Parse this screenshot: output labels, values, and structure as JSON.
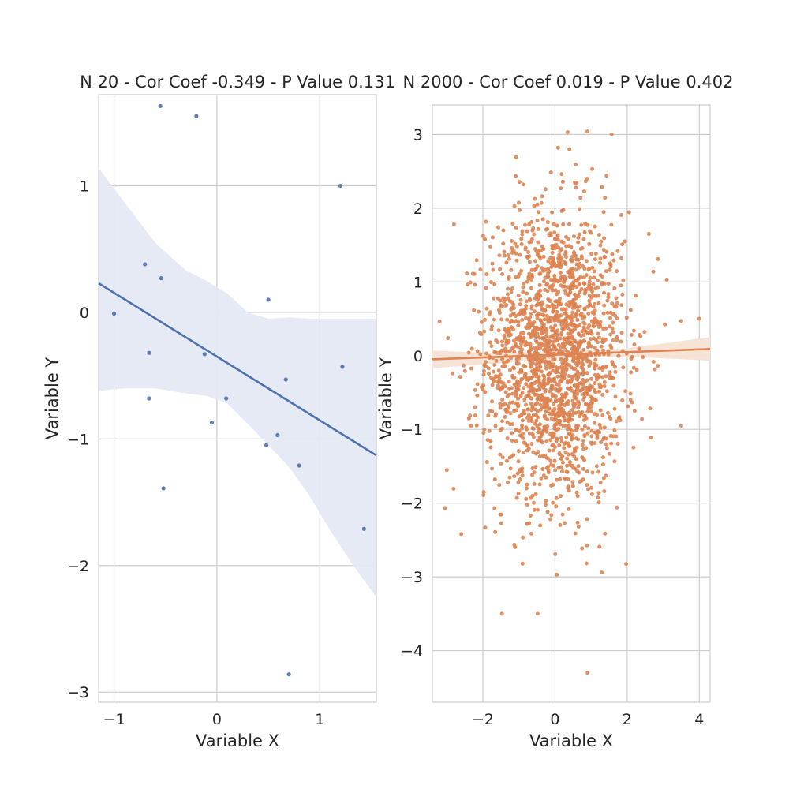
{
  "chart_data": [
    {
      "type": "scatter",
      "title": "N 20 - Cor Coef -0.349 - P Value 0.131",
      "xlabel": "Variable X",
      "ylabel": "Variable Y",
      "xlim": [
        -1.15,
        1.55
      ],
      "ylim": [
        -3.08,
        1.72
      ],
      "xticks": [
        -1,
        0,
        1
      ],
      "xtick_labels": [
        "−1",
        "0",
        "1"
      ],
      "yticks": [
        -3,
        -2,
        -1,
        0,
        1
      ],
      "ytick_labels": [
        "−3",
        "−2",
        "−1",
        "0",
        "1"
      ],
      "grid": true,
      "color": "#4c72b0",
      "band_color": "#e4e9f3",
      "regression": {
        "x": [
          -1.15,
          1.55
        ],
        "y": [
          0.23,
          -1.13
        ]
      },
      "ci_band": {
        "x": [
          -1.15,
          -0.9,
          -0.6,
          -0.3,
          -0.1,
          0.1,
          0.3,
          0.5,
          0.7,
          0.9,
          1.1,
          1.3,
          1.55
        ],
        "upper": [
          1.14,
          0.87,
          0.55,
          0.33,
          0.25,
          0.15,
          0.0,
          -0.05,
          -0.04,
          -0.05,
          -0.05,
          -0.05,
          -0.05
        ],
        "lower": [
          -0.62,
          -0.6,
          -0.6,
          -0.64,
          -0.66,
          -0.72,
          -0.88,
          -1.05,
          -1.22,
          -1.45,
          -1.72,
          -1.97,
          -2.25
        ]
      },
      "points": [
        {
          "x": -0.55,
          "y": 1.63
        },
        {
          "x": -0.2,
          "y": 1.55
        },
        {
          "x": 1.2,
          "y": 1.0
        },
        {
          "x": -0.7,
          "y": 0.38
        },
        {
          "x": -0.54,
          "y": 0.27
        },
        {
          "x": -1.0,
          "y": -0.01
        },
        {
          "x": 0.5,
          "y": 0.1
        },
        {
          "x": -0.66,
          "y": -0.32
        },
        {
          "x": -0.12,
          "y": -0.33
        },
        {
          "x": 1.22,
          "y": -0.43
        },
        {
          "x": 0.67,
          "y": -0.53
        },
        {
          "x": -0.66,
          "y": -0.68
        },
        {
          "x": 0.09,
          "y": -0.68
        },
        {
          "x": -0.05,
          "y": -0.87
        },
        {
          "x": 0.59,
          "y": -0.97
        },
        {
          "x": 0.48,
          "y": -1.05
        },
        {
          "x": 0.8,
          "y": -1.21
        },
        {
          "x": -0.52,
          "y": -1.39
        },
        {
          "x": 1.43,
          "y": -1.71
        },
        {
          "x": 0.7,
          "y": -2.86
        }
      ]
    },
    {
      "type": "scatter",
      "title": "N 2000 - Cor Coef 0.019 - P Value 0.402",
      "xlabel": "Variable X",
      "ylabel": "Variable Y",
      "xlim": [
        -3.4,
        4.3
      ],
      "ylim": [
        -4.7,
        3.4
      ],
      "xticks": [
        -2,
        0,
        2,
        4
      ],
      "xtick_labels": [
        "−2",
        "0",
        "2",
        "4"
      ],
      "yticks": [
        -4,
        -3,
        -2,
        -1,
        0,
        1,
        2,
        3
      ],
      "ytick_labels": [
        "−4",
        "−3",
        "−2",
        "−1",
        "0",
        "1",
        "2",
        "3"
      ],
      "grid": true,
      "color": "#dd8452",
      "band_color": "#f7e3d5",
      "n_points": 2000,
      "regression": {
        "x": [
          -3.4,
          4.3
        ],
        "y": [
          -0.05,
          0.09
        ]
      },
      "ci_band": {
        "x": [
          -3.4,
          -2,
          0,
          2,
          4.3
        ],
        "upper": [
          0.07,
          0.04,
          0.05,
          0.1,
          0.25
        ],
        "lower": [
          -0.17,
          -0.12,
          -0.04,
          -0.01,
          -0.07
        ]
      },
      "notable_points": [
        {
          "x": 0.9,
          "y": -4.3
        },
        {
          "x": 0.35,
          "y": 3.03
        },
        {
          "x": 0.9,
          "y": 3.04
        },
        {
          "x": 4.0,
          "y": 0.5
        },
        {
          "x": 3.5,
          "y": 0.47
        },
        {
          "x": 3.1,
          "y": 1.03
        },
        {
          "x": 3.5,
          "y": -0.95
        },
        {
          "x": 2.6,
          "y": 1.65
        },
        {
          "x": -3.0,
          "y": -1.55
        },
        {
          "x": -2.6,
          "y": -2.42
        },
        {
          "x": 0.05,
          "y": -2.97
        },
        {
          "x": -2.8,
          "y": 1.78
        },
        {
          "x": 0.4,
          "y": 2.8
        },
        {
          "x": -0.9,
          "y": -2.82
        }
      ]
    }
  ]
}
